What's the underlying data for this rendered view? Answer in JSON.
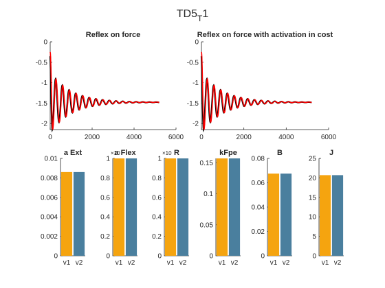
{
  "figure": {
    "title": "TD5",
    "title_subscript": "T",
    "title_suffix": "1"
  },
  "chart_data": [
    {
      "type": "line",
      "title": "Reflex on force",
      "xlabel": "",
      "ylabel": "",
      "xlim": [
        0,
        6000
      ],
      "ylim": [
        -2.15,
        0
      ],
      "xticks": [
        0,
        2000,
        4000,
        6000
      ],
      "yticks": [
        0,
        -0.5,
        -1,
        -1.5,
        -2
      ],
      "signal": {
        "t_end": 5200,
        "start": -0.25,
        "final": -1.48,
        "first_min": -2.15,
        "first_min_t": 120,
        "period": 320,
        "decay_tau": 1000,
        "phase_end": 5200
      },
      "series": [
        {
          "color": "#000000",
          "width": 2.2
        },
        {
          "color": "#ff0000",
          "width": 1.6
        }
      ],
      "grid": false
    },
    {
      "type": "line",
      "title": "Reflex on force with activation in cost",
      "xlabel": "",
      "ylabel": "",
      "xlim": [
        0,
        6000
      ],
      "ylim": [
        -2.15,
        0
      ],
      "xticks": [
        0,
        2000,
        4000,
        6000
      ],
      "yticks": [
        0,
        -0.5,
        -1,
        -1.5,
        -2
      ],
      "signal": {
        "t_end": 5200,
        "start": -0.25,
        "final": -1.48,
        "first_min": -2.15,
        "first_min_t": 120,
        "period": 320,
        "decay_tau": 1000,
        "phase_end": 5200
      },
      "series": [
        {
          "color": "#000000",
          "width": 2.2
        },
        {
          "color": "#ff0000",
          "width": 1.6
        }
      ],
      "grid": false
    },
    {
      "type": "bar",
      "title": "a Ext",
      "categories": [
        "v1",
        "v2"
      ],
      "values": [
        0.0086,
        0.0086
      ],
      "colors": [
        "#f5a40f",
        "#4a7f9e"
      ],
      "ylim": [
        0,
        0.01
      ],
      "yticks": [
        "0",
        "0.002",
        "0.004",
        "0.006",
        "0.008",
        "0.01"
      ],
      "exponent_label": ""
    },
    {
      "type": "bar",
      "title": "a Flex",
      "categories": [
        "v1",
        "v2"
      ],
      "values": [
        1,
        1
      ],
      "colors": [
        "#f5a40f",
        "#4a7f9e"
      ],
      "ylim": [
        0,
        1
      ],
      "yticks": [
        "0",
        "0.2",
        "0.4",
        "0.6",
        "0.8",
        "1"
      ],
      "exponent_label": "×10"
    },
    {
      "type": "bar",
      "title": "R",
      "categories": [
        "v1",
        "v2"
      ],
      "values": [
        1,
        1
      ],
      "colors": [
        "#f5a40f",
        "#4a7f9e"
      ],
      "ylim": [
        0,
        1
      ],
      "yticks": [
        "0",
        "0.2",
        "0.4",
        "0.6",
        "0.8",
        "1"
      ],
      "exponent_label": "×10"
    },
    {
      "type": "bar",
      "title": "kFpe",
      "categories": [
        "v1",
        "v2"
      ],
      "values": [
        0.157,
        0.157
      ],
      "colors": [
        "#f5a40f",
        "#4a7f9e"
      ],
      "ylim": [
        0,
        0.157
      ],
      "yticks": [
        "0",
        "0.05",
        "0.1",
        "0.15"
      ],
      "ytick_values": [
        0,
        0.05,
        0.1,
        0.15
      ],
      "exponent_label": ""
    },
    {
      "type": "bar",
      "title": "B",
      "categories": [
        "v1",
        "v2"
      ],
      "values": [
        0.0675,
        0.0675
      ],
      "colors": [
        "#f5a40f",
        "#4a7f9e"
      ],
      "ylim": [
        0,
        0.08
      ],
      "yticks": [
        "0",
        "0.02",
        "0.04",
        "0.06",
        "0.08"
      ],
      "exponent_label": ""
    },
    {
      "type": "bar",
      "title": "J",
      "categories": [
        "v1",
        "v2"
      ],
      "values": [
        20.7,
        20.7
      ],
      "colors": [
        "#f5a40f",
        "#4a7f9e"
      ],
      "ylim": [
        0,
        25
      ],
      "yticks": [
        "0",
        "5",
        "10",
        "15",
        "20",
        "25"
      ],
      "exponent_label": ""
    }
  ]
}
